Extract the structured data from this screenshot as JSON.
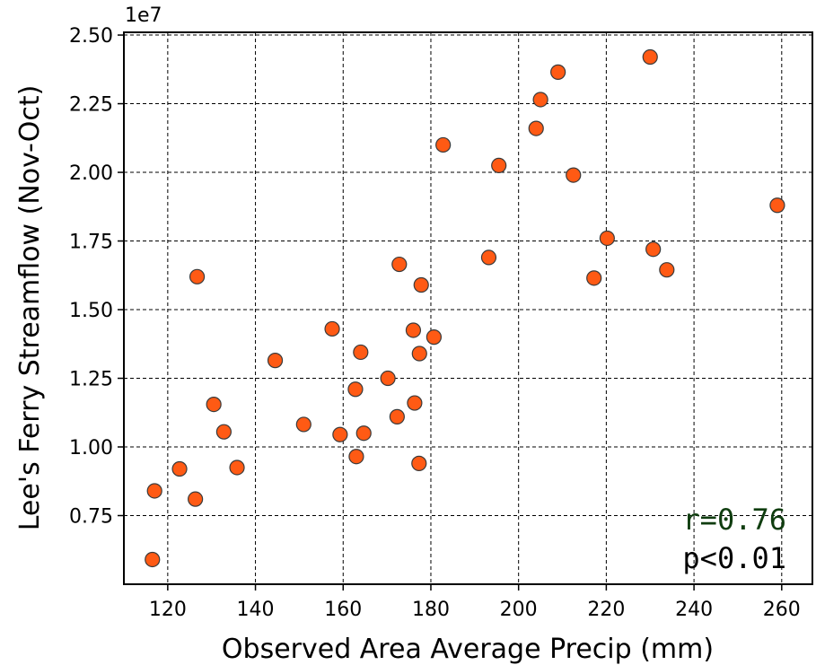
{
  "chart_data": {
    "type": "scatter",
    "title": "",
    "xlabel": "Observed Area Average Precip (mm)",
    "ylabel": "Lee's Ferry Streamflow (Nov-Oct)",
    "y_offset_label": "1e7",
    "xlim": [
      110,
      267
    ],
    "ylim": [
      0.5,
      2.51
    ],
    "x_ticks": [
      120,
      140,
      160,
      180,
      200,
      220,
      240,
      260
    ],
    "y_ticks": [
      0.75,
      1.0,
      1.25,
      1.5,
      1.75,
      2.0,
      2.25,
      2.5
    ],
    "x_tick_labels": [
      "120",
      "140",
      "160",
      "180",
      "200",
      "220",
      "240",
      "260"
    ],
    "y_tick_labels": [
      "0.75",
      "1.00",
      "1.25",
      "1.50",
      "1.75",
      "2.00",
      "2.25",
      "2.50"
    ],
    "grid": true,
    "marker_color": "#ff5a14",
    "marker_edge": "#3a3a3a",
    "points": [
      [
        116.5,
        0.59
      ],
      [
        117.0,
        0.84
      ],
      [
        122.7,
        0.92
      ],
      [
        126.3,
        0.81
      ],
      [
        126.7,
        1.62
      ],
      [
        130.5,
        1.155
      ],
      [
        132.8,
        1.055
      ],
      [
        135.8,
        0.925
      ],
      [
        144.5,
        1.315
      ],
      [
        151.0,
        1.082
      ],
      [
        157.5,
        1.43
      ],
      [
        159.3,
        1.045
      ],
      [
        163.0,
        0.965
      ],
      [
        162.8,
        1.21
      ],
      [
        164.0,
        1.345
      ],
      [
        164.7,
        1.05
      ],
      [
        170.2,
        1.25
      ],
      [
        172.3,
        1.11
      ],
      [
        172.8,
        1.665
      ],
      [
        176.0,
        1.425
      ],
      [
        176.3,
        1.16
      ],
      [
        177.3,
        0.94
      ],
      [
        177.4,
        1.34
      ],
      [
        177.8,
        1.59
      ],
      [
        180.7,
        1.4
      ],
      [
        182.8,
        2.1
      ],
      [
        193.2,
        1.69
      ],
      [
        195.5,
        2.025
      ],
      [
        204.0,
        2.16
      ],
      [
        205.0,
        2.265
      ],
      [
        209.0,
        2.365
      ],
      [
        212.5,
        1.99
      ],
      [
        217.2,
        1.615
      ],
      [
        220.2,
        1.76
      ],
      [
        230.0,
        2.42
      ],
      [
        230.7,
        1.72
      ],
      [
        233.8,
        1.645
      ],
      [
        259.0,
        1.88
      ]
    ],
    "annotations": [
      {
        "text": "r=0.76",
        "color": "#0f3d0f"
      },
      {
        "text": "p<0.01",
        "color": "#000000"
      }
    ]
  }
}
